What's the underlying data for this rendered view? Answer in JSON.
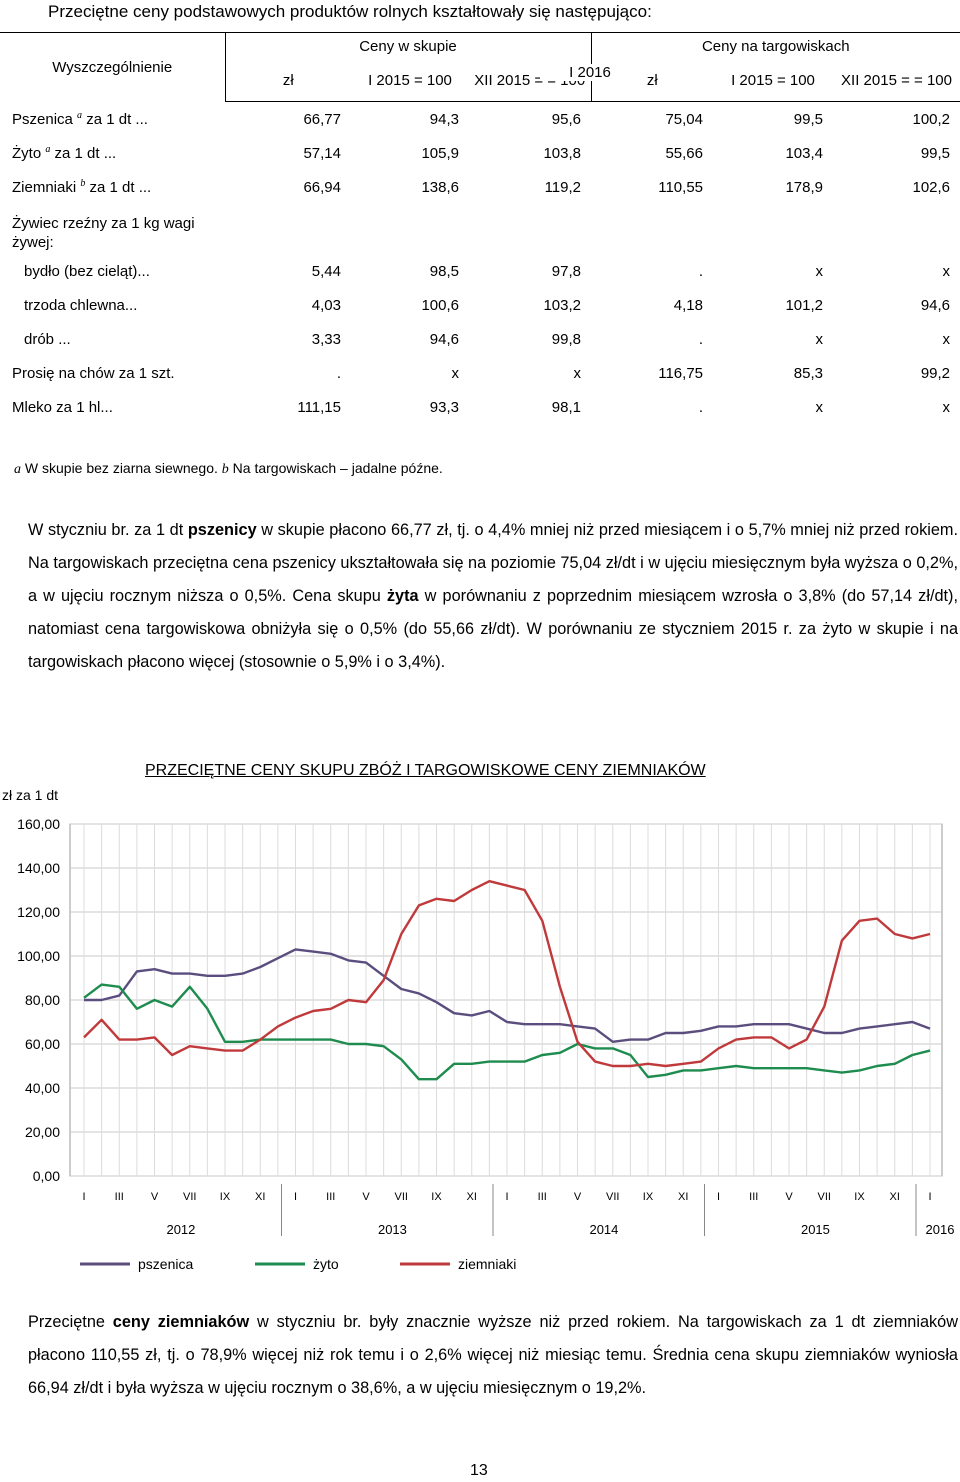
{
  "heading": "Przeciętne ceny podstawowych produktów rolnych kształtowały się następująco:",
  "table": {
    "header": {
      "spec": "Wyszczególnienie",
      "period": "I 2016",
      "group1": "Ceny w skupie",
      "group2": "Ceny na targowiskach",
      "sub": [
        "zł",
        "I 2015 = 100",
        "XII 2015 = = 100",
        "zł",
        "I 2015 = 100",
        "XII 2015 = = 100"
      ]
    },
    "rows": [
      {
        "label": "Pszenica",
        "sup": "a",
        "unit": " za 1 dt ...",
        "values": [
          "66,77",
          "94,3",
          "95,6",
          "75,04",
          "99,5",
          "100,2"
        ]
      },
      {
        "label": "Żyto",
        "sup": "a",
        "unit": " za 1 dt ...",
        "values": [
          "57,14",
          "105,9",
          "103,8",
          "55,66",
          "103,4",
          "99,5"
        ]
      },
      {
        "label": "Ziemniaki",
        "sup": "b",
        "unit": " za 1 dt ...",
        "values": [
          "66,94",
          "138,6",
          "119,2",
          "110,55",
          "178,9",
          "102,6"
        ]
      },
      {
        "label": "Żywiec rzeźny za 1 kg wagi żywej:",
        "section": true
      },
      {
        "label": "bydło (bez cieląt)...",
        "indent": true,
        "values": [
          "5,44",
          "98,5",
          "97,8",
          ".",
          "x",
          "x"
        ]
      },
      {
        "label": "trzoda chlewna...",
        "indent": true,
        "values": [
          "4,03",
          "100,6",
          "103,2",
          "4,18",
          "101,2",
          "94,6"
        ]
      },
      {
        "label": "drób ...",
        "indent": true,
        "values": [
          "3,33",
          "94,6",
          "99,8",
          ".",
          "x",
          "x"
        ]
      },
      {
        "label": "Prosię na chów za 1 szt.",
        "values": [
          ".",
          "x",
          "x",
          "116,75",
          "85,3",
          "99,2"
        ]
      },
      {
        "label": "Mleko za 1 hl...",
        "values": [
          "111,15",
          "93,3",
          "98,1",
          ".",
          "x",
          "x"
        ]
      }
    ]
  },
  "footnote": {
    "a_mark": "a",
    "a_text": " W skupie bez ziarna siewnego. ",
    "b_mark": "b",
    "b_text": " Na targowiskach – jadalne późne."
  },
  "para1": [
    {
      "t": "W styczniu br. za 1 dt "
    },
    {
      "t": "pszenicy",
      "b": true
    },
    {
      "t": " w skupie płacono 66,77 zł, tj. o 4,4% mniej niż przed miesiącem i o 5,7% mniej niż przed rokiem. Na targowiskach przeciętna cena pszenicy ukształtowała się na poziomie 75,04 zł/dt i w ujęciu miesięcznym była wyższa o 0,2%, a w ujęciu rocznym niższa o 0,5%. Cena skupu "
    },
    {
      "t": "żyta",
      "b": true
    },
    {
      "t": " w porównaniu z poprzednim miesiącem wzrosła o 3,8% (do 57,14 zł/dt), natomiast cena targowiskowa obniżyła się o 0,5% (do 55,66 zł/dt). W porównaniu ze styczniem 2015 r. za żyto w skupie i na targowiskach płacono więcej (stosownie o 5,9% i o 3,4%)."
    }
  ],
  "chart_data": {
    "type": "line",
    "title": "PRZECIĘTNE CENY SKUPU ZBÓŻ I TARGOWISKOWE CENY ZIEMNIAKÓW",
    "ylabel": "zł za 1 dt",
    "ylim": [
      0,
      160
    ],
    "yticks": [
      "0,00",
      "20,00",
      "40,00",
      "60,00",
      "80,00",
      "100,00",
      "120,00",
      "140,00",
      "160,00"
    ],
    "grid": true,
    "legend_position": "bottom",
    "month_labels": [
      "I",
      "III",
      "V",
      "VII",
      "IX",
      "XI",
      "I",
      "III",
      "V",
      "VII",
      "IX",
      "XI",
      "I",
      "III",
      "V",
      "VII",
      "IX",
      "XI",
      "I",
      "III",
      "V",
      "VII",
      "IX",
      "XI",
      "I"
    ],
    "years": [
      "2012",
      "2013",
      "2014",
      "2015",
      "2016"
    ],
    "x": [
      "I 2012",
      "II",
      "III",
      "IV",
      "V",
      "VI",
      "VII",
      "VIII",
      "IX",
      "X",
      "XI",
      "XII",
      "I 2013",
      "II",
      "III",
      "IV",
      "V",
      "VI",
      "VII",
      "VIII",
      "IX",
      "X",
      "XI",
      "XII",
      "I 2014",
      "II",
      "III",
      "IV",
      "V",
      "VI",
      "VII",
      "VIII",
      "IX",
      "X",
      "XI",
      "XII",
      "I 2015",
      "II",
      "III",
      "IV",
      "V",
      "VI",
      "VII",
      "VIII",
      "IX",
      "X",
      "XI",
      "XII",
      "I 2016"
    ],
    "series": [
      {
        "name": "pszenica",
        "color": "#5b4e7f",
        "values": [
          80,
          80,
          82,
          93,
          94,
          92,
          92,
          91,
          91,
          92,
          95,
          99,
          103,
          102,
          101,
          98,
          97,
          91,
          85,
          83,
          79,
          74,
          73,
          75,
          70,
          69,
          69,
          69,
          68,
          67,
          61,
          62,
          62,
          65,
          65,
          66,
          68,
          68,
          69,
          69,
          69,
          67,
          65,
          65,
          67,
          68,
          69,
          70,
          67
        ]
      },
      {
        "name": "żyto",
        "color": "#1e8c4e",
        "values": [
          81,
          87,
          86,
          76,
          80,
          77,
          86,
          76,
          61,
          61,
          62,
          62,
          62,
          62,
          62,
          60,
          60,
          59,
          53,
          44,
          44,
          51,
          51,
          52,
          52,
          52,
          55,
          56,
          60,
          58,
          58,
          55,
          45,
          46,
          48,
          48,
          49,
          50,
          49,
          49,
          49,
          49,
          48,
          47,
          48,
          50,
          51,
          55,
          57
        ]
      },
      {
        "name": "ziemniaki",
        "color": "#c0393b",
        "values": [
          63,
          71,
          62,
          62,
          63,
          55,
          59,
          58,
          57,
          57,
          62,
          68,
          72,
          75,
          76,
          80,
          79,
          89,
          110,
          123,
          126,
          125,
          130,
          134,
          132,
          130,
          116,
          86,
          61,
          52,
          50,
          50,
          51,
          50,
          51,
          52,
          58,
          62,
          63,
          63,
          58,
          62,
          77,
          107,
          116,
          117,
          110,
          108,
          110
        ]
      }
    ]
  },
  "para2": [
    {
      "t": "Przeciętne "
    },
    {
      "t": "ceny ziemniaków",
      "b": true
    },
    {
      "t": " w styczniu br. były znacznie wyższe niż przed rokiem. Na targowiskach za 1 dt ziemniaków płacono 110,55 zł, tj. o 78,9% więcej niż rok temu i o 2,6% więcej niż miesiąc temu. Średnia cena skupu ziemniaków wyniosła 66,94 zł/dt i była wyższa w ujęciu rocznym o 38,6%, a w ujęciu miesięcznym o 19,2%."
    }
  ],
  "page_number": "13"
}
